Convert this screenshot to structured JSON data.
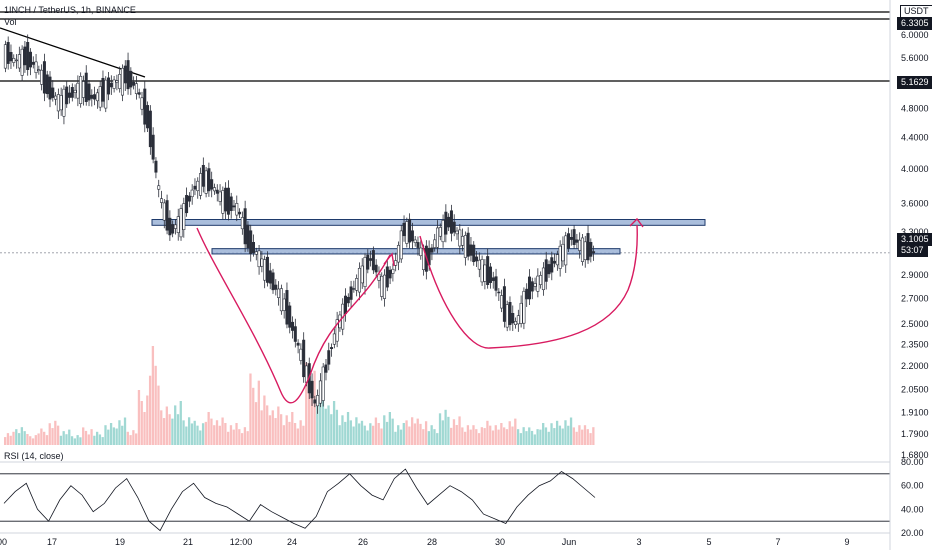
{
  "header": {
    "symbol_line": "1INCH / TetherUS, 1h, BINANCE",
    "volume_label": "Vol",
    "currency": "USDT"
  },
  "rsi": {
    "label": "RSI (14, close)",
    "ticks": [
      "80.00",
      "60.00",
      "40.00",
      "20.00"
    ]
  },
  "price_badges": {
    "top_level": "6.3305",
    "resistance_level": "5.1629",
    "last_price": "3.1005",
    "countdown": "53:07"
  },
  "colors": {
    "candle": "#2a2e39",
    "zone_fill": "#9bb3d6",
    "zone_stroke": "#1e3a6b",
    "annotation": "#d81b60",
    "volume_up": "#80cbc4",
    "volume_down": "#f7a9a9"
  },
  "chart_data": {
    "type": "candlestick",
    "title": "1INCH / TetherUS, 1h, BINANCE",
    "price_scale": "log",
    "y_tick_labels": [
      "6.0000",
      "5.6000",
      "4.8000",
      "4.4000",
      "4.0000",
      "3.6000",
      "3.3000",
      "2.9000",
      "2.7000",
      "2.5000",
      "2.3500",
      "2.2000",
      "2.0500",
      "1.9100",
      "1.7900",
      "1.6800"
    ],
    "x_tick_labels": [
      "00",
      "17",
      "19",
      "21",
      "12:00",
      "24",
      "26",
      "28",
      "30",
      "Jun",
      "3",
      "5",
      "7",
      "9"
    ],
    "close_path": [
      5.7,
      5.55,
      5.6,
      5.45,
      5.1,
      4.9,
      5.0,
      5.15,
      4.95,
      5.05,
      5.2,
      5.3,
      5.1,
      4.6,
      3.7,
      3.3,
      3.45,
      3.75,
      3.9,
      3.75,
      3.6,
      3.55,
      3.2,
      3.05,
      2.85,
      2.7,
      2.45,
      2.2,
      1.95,
      2.2,
      2.5,
      2.7,
      2.9,
      3.05,
      2.8,
      2.95,
      3.35,
      3.2,
      3.0,
      3.3,
      3.4,
      3.25,
      3.1,
      2.95,
      2.85,
      2.6,
      2.5,
      2.75,
      2.85,
      2.95,
      3.1,
      3.25,
      3.15,
      3.1
    ],
    "volume_relative": [
      0.12,
      0.18,
      0.1,
      0.15,
      0.22,
      0.14,
      0.1,
      0.16,
      0.12,
      0.2,
      0.25,
      0.15,
      0.5,
      0.9,
      0.35,
      0.4,
      0.28,
      0.22,
      0.3,
      0.25,
      0.2,
      0.18,
      0.65,
      0.45,
      0.35,
      0.3,
      0.25,
      0.75,
      0.55,
      0.4,
      0.3,
      0.28,
      0.22,
      0.25,
      0.3,
      0.2,
      0.28,
      0.24,
      0.18,
      0.32,
      0.26,
      0.2,
      0.18,
      0.22,
      0.2,
      0.24,
      0.18,
      0.16,
      0.2,
      0.22,
      0.25,
      0.2,
      0.18,
      0.16
    ],
    "rsi_values": [
      45,
      55,
      62,
      40,
      30,
      48,
      60,
      52,
      38,
      45,
      58,
      66,
      50,
      30,
      22,
      40,
      55,
      62,
      50,
      45,
      42,
      36,
      30,
      44,
      38,
      33,
      28,
      24,
      34,
      55,
      62,
      70,
      60,
      52,
      48,
      66,
      74,
      58,
      44,
      52,
      60,
      55,
      48,
      36,
      32,
      28,
      42,
      52,
      60,
      64,
      72,
      66,
      58,
      50
    ],
    "horizontal_levels": [
      6.3305,
      5.1629
    ],
    "zones": [
      {
        "low": 3.37,
        "high": 3.43
      },
      {
        "low": 3.09,
        "high": 3.14
      }
    ],
    "trendline": {
      "from": 6.55,
      "to": 5.2
    },
    "rsi_bands": [
      70,
      30
    ]
  }
}
